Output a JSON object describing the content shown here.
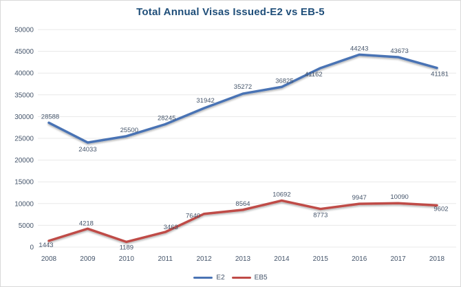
{
  "chart_data": {
    "type": "line",
    "title": "Total Annual Visas Issued-E2 vs EB-5",
    "categories": [
      "2008",
      "2009",
      "2010",
      "2011",
      "2012",
      "2013",
      "2014",
      "2015",
      "2016",
      "2017",
      "2018"
    ],
    "series": [
      {
        "name": "E2",
        "color": "#4a73b4",
        "values": [
          28588,
          24033,
          25500,
          28245,
          31942,
          35272,
          36825,
          41162,
          44243,
          43673,
          41181
        ]
      },
      {
        "name": "EB5",
        "color": "#bf4b47",
        "values": [
          1443,
          4218,
          1189,
          3463,
          7640,
          8564,
          10692,
          8773,
          9947,
          10090,
          9602
        ]
      }
    ],
    "ylim": [
      0,
      50000
    ],
    "ytick_step": 5000,
    "yticks": [
      0,
      5000,
      10000,
      15000,
      20000,
      25000,
      30000,
      35000,
      40000,
      45000,
      50000
    ],
    "grid": true,
    "legend_position": "bottom",
    "data_labels": true
  },
  "style_colors": {
    "title": "#1f4e79",
    "axis_text": "#44546a",
    "data_label_text": "#44546a",
    "gridline": "#e8e8e8"
  }
}
